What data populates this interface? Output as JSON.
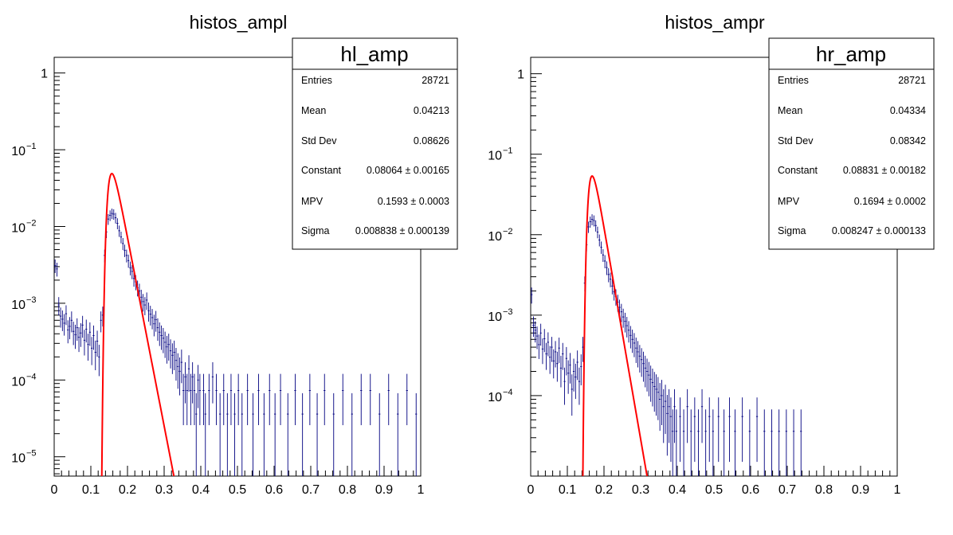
{
  "chart_data": [
    {
      "type": "histogram",
      "title": "histos_ampl",
      "xlabel": "",
      "ylabel": "",
      "xlim": [
        0,
        1
      ],
      "ylim": [
        5.6e-06,
        1.6
      ],
      "log_y": true,
      "grid": false,
      "x_ticks": [
        "0",
        "0.1",
        "0.2",
        "0.3",
        "0.4",
        "0.5",
        "0.6",
        "0.7",
        "0.8",
        "0.9",
        "1"
      ],
      "y_ticks": [
        {
          "base": "1",
          "exp": "",
          "value": 1
        },
        {
          "base": "10",
          "exp": "−1",
          "value": 0.1
        },
        {
          "base": "10",
          "exp": "−2",
          "value": 0.01
        },
        {
          "base": "10",
          "exp": "−3",
          "value": 0.001
        },
        {
          "base": "10",
          "exp": "−4",
          "value": 0.0001
        },
        {
          "base": "10",
          "exp": "−5",
          "value": 1e-05
        }
      ],
      "stats": {
        "title": "hl_amp",
        "rows": [
          {
            "label": "Entries",
            "value": "28721"
          },
          {
            "label": "Mean",
            "value": "0.04213"
          },
          {
            "label": "Std Dev",
            "value": "0.08626"
          },
          {
            "label": "Constant",
            "value": "0.08064 ± 0.00165"
          },
          {
            "label": "MPV",
            "value": "0.1593 ± 0.0003"
          },
          {
            "label": "Sigma",
            "value": "0.008838 ± 0.000139"
          }
        ]
      },
      "hist_color": "#000080",
      "fit_color": "#ff0000",
      "landau": {
        "constant": 0.08064,
        "mpv": 0.1593,
        "sigma": 0.008838,
        "x_start": 0.12
      },
      "points": [
        [
          0.0025,
          0.0031
        ],
        [
          0.0075,
          0.0028
        ],
        [
          0.0125,
          0.00095
        ],
        [
          0.0175,
          0.00068
        ],
        [
          0.0225,
          0.00062
        ],
        [
          0.0275,
          0.00055
        ],
        [
          0.0325,
          0.00073
        ],
        [
          0.0375,
          0.00045
        ],
        [
          0.0425,
          0.0005
        ],
        [
          0.0475,
          0.0006
        ],
        [
          0.0525,
          0.00043
        ],
        [
          0.0575,
          0.00039
        ],
        [
          0.0625,
          0.00048
        ],
        [
          0.0675,
          0.00036
        ],
        [
          0.0725,
          0.00041
        ],
        [
          0.0775,
          0.00052
        ],
        [
          0.0825,
          0.00033
        ],
        [
          0.0875,
          0.00046
        ],
        [
          0.0925,
          0.00029
        ],
        [
          0.0975,
          0.00042
        ],
        [
          0.1025,
          0.00026
        ],
        [
          0.1075,
          0.00038
        ],
        [
          0.1125,
          0.00023
        ],
        [
          0.1175,
          0.00032
        ],
        [
          0.1225,
          0.0002
        ],
        [
          0.1275,
          0.0006
        ],
        [
          0.1325,
          0.0007
        ],
        [
          0.1375,
          0.0042
        ],
        [
          0.1425,
          0.0085
        ],
        [
          0.1475,
          0.0125
        ],
        [
          0.1525,
          0.014
        ],
        [
          0.1575,
          0.0148
        ],
        [
          0.1625,
          0.0145
        ],
        [
          0.1675,
          0.013
        ],
        [
          0.1725,
          0.011
        ],
        [
          0.1775,
          0.0088
        ],
        [
          0.1825,
          0.0073
        ],
        [
          0.1875,
          0.006
        ],
        [
          0.1925,
          0.0049
        ],
        [
          0.1975,
          0.0042
        ],
        [
          0.2025,
          0.0036
        ],
        [
          0.2075,
          0.0029
        ],
        [
          0.2125,
          0.0026
        ],
        [
          0.2175,
          0.0021
        ],
        [
          0.2225,
          0.0019
        ],
        [
          0.2275,
          0.0016
        ],
        [
          0.2325,
          0.00145
        ],
        [
          0.2375,
          0.0012
        ],
        [
          0.2425,
          0.00105
        ],
        [
          0.2475,
          0.00095
        ],
        [
          0.2525,
          0.0011
        ],
        [
          0.2575,
          0.0008
        ],
        [
          0.2625,
          0.00072
        ],
        [
          0.2675,
          0.00065
        ],
        [
          0.2725,
          0.00054
        ],
        [
          0.2775,
          0.00061
        ],
        [
          0.2825,
          0.00048
        ],
        [
          0.2875,
          0.00042
        ],
        [
          0.2925,
          0.00038
        ],
        [
          0.2975,
          0.00035
        ],
        [
          0.3025,
          0.00031
        ],
        [
          0.3075,
          0.00027
        ],
        [
          0.3125,
          0.00029
        ],
        [
          0.3175,
          0.00024
        ],
        [
          0.3225,
          0.00021
        ],
        [
          0.3275,
          0.00023
        ],
        [
          0.3325,
          0.00018
        ],
        [
          0.3375,
          0.00015
        ],
        [
          0.3425,
          0.00013
        ],
        [
          0.3475,
          0.00017
        ],
        [
          0.3525,
          7.3e-05
        ],
        [
          0.3575,
          0.00011
        ],
        [
          0.3625,
          7.3e-05
        ],
        [
          0.3675,
          0.00014
        ],
        [
          0.3725,
          7.3e-05
        ],
        [
          0.3775,
          0.00011
        ],
        [
          0.3825,
          7.3e-05
        ],
        [
          0.3875,
          3.6e-05
        ],
        [
          0.3925,
          0.0001
        ],
        [
          0.3975,
          7.3e-05
        ],
        [
          0.4075,
          7.3e-05
        ],
        [
          0.4125,
          3.6e-05
        ],
        [
          0.4225,
          7.3e-05
        ],
        [
          0.4325,
          0.00011
        ],
        [
          0.4425,
          7.3e-05
        ],
        [
          0.4525,
          3.6e-05
        ],
        [
          0.4625,
          7.3e-05
        ],
        [
          0.4725,
          3.6e-05
        ],
        [
          0.4825,
          7.3e-05
        ],
        [
          0.4925,
          3.6e-05
        ],
        [
          0.5025,
          7.3e-05
        ],
        [
          0.5125,
          3.6e-05
        ],
        [
          0.5275,
          7.3e-05
        ],
        [
          0.5425,
          3.6e-05
        ],
        [
          0.5575,
          7.3e-05
        ],
        [
          0.5725,
          3.6e-05
        ],
        [
          0.5875,
          7.3e-05
        ],
        [
          0.6025,
          3.6e-05
        ],
        [
          0.6175,
          7.3e-05
        ],
        [
          0.6375,
          3.6e-05
        ],
        [
          0.6575,
          7.3e-05
        ],
        [
          0.6775,
          3.6e-05
        ],
        [
          0.6975,
          7.3e-05
        ],
        [
          0.7175,
          3.6e-05
        ],
        [
          0.7375,
          7.3e-05
        ],
        [
          0.7625,
          3.6e-05
        ],
        [
          0.7875,
          7.3e-05
        ],
        [
          0.8125,
          3.6e-05
        ],
        [
          0.8375,
          7.3e-05
        ],
        [
          0.8625,
          7.3e-05
        ],
        [
          0.8875,
          3.6e-05
        ],
        [
          0.9125,
          7.3e-05
        ],
        [
          0.9375,
          3.6e-05
        ],
        [
          0.9625,
          7.3e-05
        ],
        [
          0.9875,
          3.6e-05
        ]
      ]
    },
    {
      "type": "histogram",
      "title": "histos_ampr",
      "xlabel": "",
      "ylabel": "",
      "xlim": [
        0,
        1
      ],
      "ylim": [
        1e-05,
        1.6
      ],
      "log_y": true,
      "grid": false,
      "x_ticks": [
        "0",
        "0.1",
        "0.2",
        "0.3",
        "0.4",
        "0.5",
        "0.6",
        "0.7",
        "0.8",
        "0.9",
        "1"
      ],
      "y_ticks": [
        {
          "base": "1",
          "exp": "",
          "value": 1
        },
        {
          "base": "10",
          "exp": "−1",
          "value": 0.1
        },
        {
          "base": "10",
          "exp": "−2",
          "value": 0.01
        },
        {
          "base": "10",
          "exp": "−3",
          "value": 0.001
        },
        {
          "base": "10",
          "exp": "−4",
          "value": 0.0001
        }
      ],
      "stats": {
        "title": "hr_amp",
        "rows": [
          {
            "label": "Entries",
            "value": "28721"
          },
          {
            "label": "Mean",
            "value": "0.04334"
          },
          {
            "label": "Std Dev",
            "value": "0.08342"
          },
          {
            "label": "Constant",
            "value": "0.08831 ± 0.00182"
          },
          {
            "label": "MPV",
            "value": "0.1694 ± 0.0002"
          },
          {
            "label": "Sigma",
            "value": "0.008247 ± 0.000133"
          }
        ]
      },
      "hist_color": "#000080",
      "fit_color": "#ff0000",
      "landau": {
        "constant": 0.08831,
        "mpv": 0.1694,
        "sigma": 0.008247,
        "x_start": 0.14
      },
      "points": [
        [
          0.0025,
          0.0018
        ],
        [
          0.0075,
          0.00075
        ],
        [
          0.0125,
          0.00065
        ],
        [
          0.0175,
          0.00055
        ],
        [
          0.0225,
          0.00043
        ],
        [
          0.0275,
          0.0006
        ],
        [
          0.0325,
          0.00038
        ],
        [
          0.0375,
          0.00051
        ],
        [
          0.0425,
          0.00033
        ],
        [
          0.0475,
          0.00046
        ],
        [
          0.0525,
          0.0003
        ],
        [
          0.0575,
          0.0004
        ],
        [
          0.0625,
          0.00027
        ],
        [
          0.0675,
          0.00035
        ],
        [
          0.0725,
          0.00025
        ],
        [
          0.0775,
          0.00039
        ],
        [
          0.0825,
          0.00022
        ],
        [
          0.0875,
          0.00033
        ],
        [
          0.0925,
          0.00015
        ],
        [
          0.0975,
          0.00029
        ],
        [
          0.1025,
          0.00019
        ],
        [
          0.1075,
          0.00024
        ],
        [
          0.1125,
          0.00012
        ],
        [
          0.1175,
          0.0002
        ],
        [
          0.1225,
          0.00017
        ],
        [
          0.1275,
          0.00026
        ],
        [
          0.1325,
          0.00015
        ],
        [
          0.1375,
          0.00023
        ],
        [
          0.1425,
          0.0004
        ],
        [
          0.1475,
          0.0025
        ],
        [
          0.1525,
          0.0075
        ],
        [
          0.1575,
          0.0125
        ],
        [
          0.1625,
          0.0145
        ],
        [
          0.1675,
          0.0155
        ],
        [
          0.1725,
          0.015
        ],
        [
          0.1775,
          0.013
        ],
        [
          0.1825,
          0.0108
        ],
        [
          0.1875,
          0.0086
        ],
        [
          0.1925,
          0.007
        ],
        [
          0.1975,
          0.0056
        ],
        [
          0.2025,
          0.0047
        ],
        [
          0.2075,
          0.0039
        ],
        [
          0.2125,
          0.0032
        ],
        [
          0.2175,
          0.0028
        ],
        [
          0.2225,
          0.0023
        ],
        [
          0.2275,
          0.00195
        ],
        [
          0.2325,
          0.0017
        ],
        [
          0.2375,
          0.00145
        ],
        [
          0.2425,
          0.00125
        ],
        [
          0.2475,
          0.0011
        ],
        [
          0.2525,
          0.00095
        ],
        [
          0.2575,
          0.00084
        ],
        [
          0.2625,
          0.00074
        ],
        [
          0.2675,
          0.00065
        ],
        [
          0.2725,
          0.00056
        ],
        [
          0.2775,
          0.0005
        ],
        [
          0.2825,
          0.00045
        ],
        [
          0.2875,
          0.00039
        ],
        [
          0.2925,
          0.00035
        ],
        [
          0.2975,
          0.00031
        ],
        [
          0.3025,
          0.00028
        ],
        [
          0.3075,
          0.00025
        ],
        [
          0.3125,
          0.00022
        ],
        [
          0.3175,
          0.0002
        ],
        [
          0.3225,
          0.00018
        ],
        [
          0.3275,
          0.00016
        ],
        [
          0.3325,
          0.000145
        ],
        [
          0.3375,
          0.00013
        ],
        [
          0.3425,
          0.00012
        ],
        [
          0.3475,
          0.00011
        ],
        [
          0.3525,
          9e-05
        ],
        [
          0.3575,
          0.0001
        ],
        [
          0.3625,
          7.3e-05
        ],
        [
          0.3675,
          8.5e-05
        ],
        [
          0.3725,
          6e-05
        ],
        [
          0.3775,
          7.3e-05
        ],
        [
          0.3825,
          5.5e-05
        ],
        [
          0.3875,
          3.6e-05
        ],
        [
          0.3925,
          7.3e-05
        ],
        [
          0.3975,
          3.6e-05
        ],
        [
          0.4075,
          5.5e-05
        ],
        [
          0.4175,
          3.6e-05
        ],
        [
          0.4275,
          7.3e-05
        ],
        [
          0.4375,
          3.6e-05
        ],
        [
          0.4475,
          5.5e-05
        ],
        [
          0.4575,
          3.6e-05
        ],
        [
          0.4675,
          7.3e-05
        ],
        [
          0.4775,
          3.6e-05
        ],
        [
          0.4875,
          5.5e-05
        ],
        [
          0.4975,
          3.6e-05
        ],
        [
          0.5125,
          5.5e-05
        ],
        [
          0.5275,
          3.6e-05
        ],
        [
          0.5425,
          5.5e-05
        ],
        [
          0.5575,
          3.6e-05
        ],
        [
          0.5775,
          5.5e-05
        ],
        [
          0.5975,
          3.6e-05
        ],
        [
          0.6175,
          5.5e-05
        ],
        [
          0.6375,
          3.6e-05
        ],
        [
          0.6575,
          3.6e-05
        ],
        [
          0.6775,
          3.6e-05
        ],
        [
          0.6975,
          3.6e-05
        ],
        [
          0.7175,
          3.6e-05
        ],
        [
          0.7375,
          3.6e-05
        ]
      ]
    }
  ]
}
